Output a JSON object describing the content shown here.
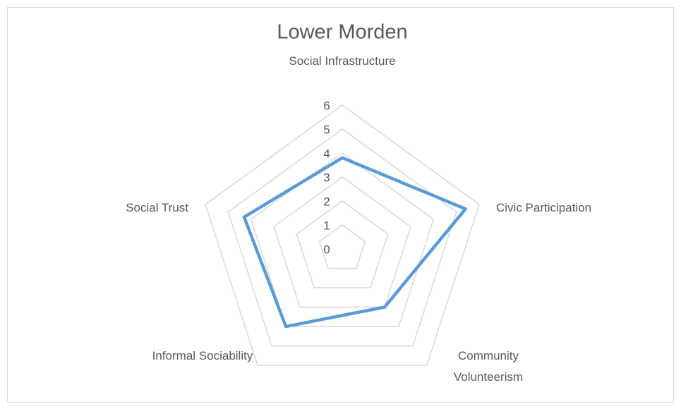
{
  "chart_data": {
    "type": "radar",
    "title": "Lower Morden",
    "categories": [
      "Social Infrastructure",
      "Civic Participation",
      "Community Volunteerism",
      "Informal Sociability",
      "Social Trust"
    ],
    "series": [
      {
        "name": "Lower Morden",
        "color": "#5b9bd5",
        "values": [
          3.8,
          5.4,
          3.0,
          4.0,
          4.3
        ]
      }
    ],
    "rlim": [
      0,
      6
    ],
    "rticks": [
      0,
      1,
      2,
      3,
      4,
      5,
      6
    ],
    "grid": true
  }
}
